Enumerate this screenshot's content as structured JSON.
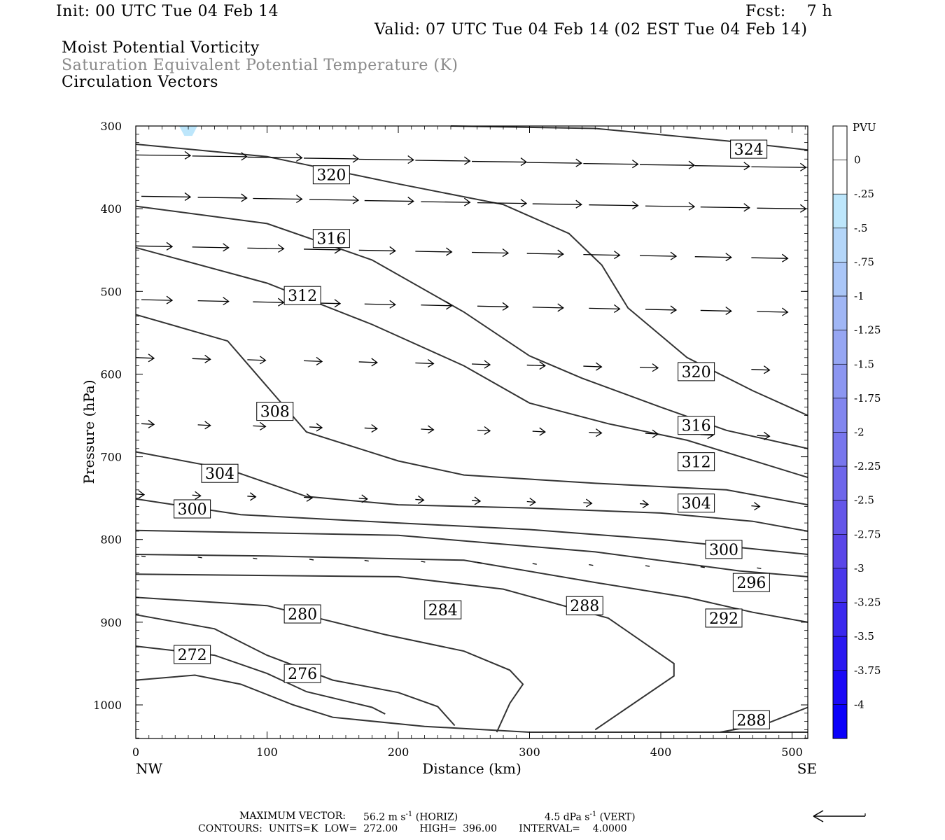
{
  "header": {
    "init": "Init: 00 UTC Tue 04 Feb 14",
    "fcst": "Fcst:    7 h",
    "valid": "Valid: 07 UTC Tue 04 Feb 14 (02 EST Tue 04 Feb 14)",
    "line1": "Moist Potential Vorticity",
    "line2": "Saturation Equivalent Potential Temperature (K)",
    "line3": "Circulation Vectors"
  },
  "colors": {
    "title_gray": "#8a8a8a",
    "contour": "#333333",
    "pvu_light": "#bde6fb"
  },
  "legend": {
    "unit": "PVU",
    "labels": [
      "0",
      "-.25",
      "-.5",
      "-.75",
      "-1",
      "-1.25",
      "-1.5",
      "-1.75",
      "-2",
      "-2.25",
      "-2.5",
      "-2.75",
      "-3",
      "-3.25",
      "-3.5",
      "-3.75",
      "-4"
    ],
    "colors": [
      "#ffffff",
      "#ffffff",
      "#bde6fb",
      "#b4d6f9",
      "#aac6f7",
      "#a0b6f5",
      "#96a6f3",
      "#8c96f1",
      "#8286ef",
      "#7876ed",
      "#6e66eb",
      "#6456e9",
      "#5a46e8",
      "#4a38eb",
      "#3a28ee",
      "#2a18f1",
      "#1a08f6",
      "#0a00fa"
    ]
  },
  "footer": {
    "maxvec_label": "MAXIMUM VECTOR:",
    "maxvec_horiz": "56.2 m s",
    "horiz_tag": "(HORIZ)",
    "maxvec_vert": "4.5 dPa s",
    "vert_tag": "(VERT)",
    "exp": "-1",
    "contours": "CONTOURS:  UNITS=K  LOW=  272.00       HIGH=  396.00       INTERVAL=    4.0000"
  },
  "chart_data": {
    "type": "contour",
    "xlabel": "Distance (km)",
    "ylabel": "Pressure (hPa)",
    "xlim": [
      0,
      512
    ],
    "ylim": [
      1040,
      300
    ],
    "x_ticks": [
      "0",
      "100",
      "200",
      "300",
      "400",
      "500"
    ],
    "y_ticks": [
      "300",
      "400",
      "500",
      "600",
      "700",
      "800",
      "900",
      "1000"
    ],
    "x_end_labels": {
      "left": "NW",
      "right": "SE"
    },
    "contour_levels_K": [
      272,
      276,
      280,
      284,
      288,
      292,
      296,
      300,
      304,
      308,
      312,
      316,
      320,
      324
    ],
    "contours": [
      {
        "level": 324,
        "label": "324",
        "points": [
          [
            240,
            300
          ],
          [
            350,
            303
          ],
          [
            450,
            318
          ],
          [
            512,
            329
          ]
        ],
        "label_at": [
          467,
          328
        ]
      },
      {
        "level": 320,
        "label": "320",
        "points": [
          [
            0,
            322
          ],
          [
            100,
            337
          ],
          [
            200,
            370
          ],
          [
            280,
            395
          ],
          [
            330,
            430
          ],
          [
            355,
            468
          ],
          [
            375,
            520
          ],
          [
            420,
            580
          ],
          [
            470,
            620
          ],
          [
            512,
            650
          ]
        ],
        "label_at": [
          149,
          359
        ],
        "label2": "320",
        "label2_at": [
          427,
          597
        ]
      },
      {
        "level": 316,
        "label": "316",
        "points": [
          [
            0,
            397
          ],
          [
            100,
            418
          ],
          [
            180,
            462
          ],
          [
            250,
            525
          ],
          [
            300,
            578
          ],
          [
            340,
            605
          ],
          [
            400,
            640
          ],
          [
            450,
            668
          ],
          [
            512,
            690
          ]
        ],
        "label_at": [
          149,
          436
        ],
        "label2": "316",
        "label2_at": [
          427,
          662
        ]
      },
      {
        "level": 312,
        "label": "312",
        "points": [
          [
            0,
            447
          ],
          [
            100,
            490
          ],
          [
            180,
            540
          ],
          [
            250,
            590
          ],
          [
            300,
            635
          ],
          [
            360,
            660
          ],
          [
            420,
            680
          ],
          [
            512,
            725
          ]
        ],
        "label_at": [
          127,
          505
        ],
        "label2": "312",
        "label2_at": [
          427,
          706
        ]
      },
      {
        "level": 308,
        "label": "308",
        "points": [
          [
            0,
            528
          ],
          [
            70,
            560
          ],
          [
            130,
            670
          ],
          [
            200,
            705
          ],
          [
            250,
            722
          ],
          [
            350,
            732
          ],
          [
            450,
            740
          ],
          [
            512,
            758
          ]
        ],
        "label_at": [
          106,
          645
        ]
      },
      {
        "level": 304,
        "label": "304",
        "points": [
          [
            0,
            694
          ],
          [
            70,
            715
          ],
          [
            130,
            748
          ],
          [
            200,
            758
          ],
          [
            300,
            762
          ],
          [
            400,
            768
          ],
          [
            470,
            778
          ],
          [
            512,
            790
          ]
        ],
        "label_at": [
          64,
          720
        ],
        "label2": "304",
        "label2_at": [
          427,
          756
        ]
      },
      {
        "level": 300,
        "label": "300",
        "points": [
          [
            0,
            751
          ],
          [
            80,
            770
          ],
          [
            200,
            780
          ],
          [
            300,
            788
          ],
          [
            400,
            800
          ],
          [
            512,
            818
          ]
        ],
        "label_at": [
          43,
          763
        ],
        "label2": "300",
        "label2_at": [
          448,
          812
        ]
      },
      {
        "level": 296,
        "label": "296",
        "points": [
          [
            0,
            789
          ],
          [
            200,
            795
          ],
          [
            350,
            815
          ],
          [
            460,
            838
          ],
          [
            512,
            845
          ]
        ],
        "label_at": [
          469,
          852
        ]
      },
      {
        "level": 292,
        "label": "292",
        "points": [
          [
            0,
            818
          ],
          [
            100,
            820
          ],
          [
            250,
            825
          ],
          [
            350,
            852
          ],
          [
            420,
            870
          ],
          [
            470,
            888
          ],
          [
            512,
            900
          ]
        ],
        "label_at": [
          448,
          895
        ]
      },
      {
        "level": 288,
        "label": "288",
        "points": [
          [
            0,
            842
          ],
          [
            200,
            845
          ],
          [
            280,
            860
          ],
          [
            360,
            895
          ],
          [
            410,
            950
          ],
          [
            410,
            965
          ],
          [
            350,
            1030
          ]
        ],
        "label_at": [
          342,
          880
        ]
      },
      {
        "level": 288,
        "label": "288",
        "points": [
          [
            445,
            1033
          ],
          [
            480,
            1023
          ],
          [
            512,
            1003
          ]
        ],
        "label_at": [
          469,
          1018
        ]
      },
      {
        "level": 284,
        "label": "284",
        "points": [
          [
            0,
            870
          ],
          [
            100,
            880
          ],
          [
            190,
            915
          ],
          [
            250,
            935
          ],
          [
            285,
            958
          ],
          [
            295,
            975
          ],
          [
            285,
            998
          ],
          [
            275,
            1033
          ]
        ],
        "label_at": [
          234,
          885
        ]
      },
      {
        "level": 280,
        "label": "280",
        "points": [
          [
            0,
            891
          ],
          [
            60,
            908
          ],
          [
            100,
            940
          ],
          [
            150,
            970
          ],
          [
            200,
            985
          ],
          [
            230,
            1002
          ],
          [
            243,
            1025
          ]
        ],
        "label_at": [
          127,
          890
        ]
      },
      {
        "level": 276,
        "label": "276",
        "points": [
          [
            0,
            929
          ],
          [
            60,
            940
          ],
          [
            100,
            962
          ],
          [
            130,
            984
          ],
          [
            180,
            1003
          ],
          [
            190,
            1011
          ]
        ],
        "label_at": [
          127,
          962
        ]
      },
      {
        "level": 272,
        "label": "272",
        "points": [
          [
            0,
            970
          ],
          [
            45,
            964
          ],
          [
            80,
            975
          ],
          [
            120,
            1000
          ],
          [
            150,
            1015
          ],
          [
            220,
            1026
          ],
          [
            300,
            1033
          ],
          [
            512,
            1033
          ]
        ],
        "label_at": [
          43,
          939
        ]
      }
    ],
    "vectors_note": "Circulation vectors with reference arrow at lower right"
  }
}
